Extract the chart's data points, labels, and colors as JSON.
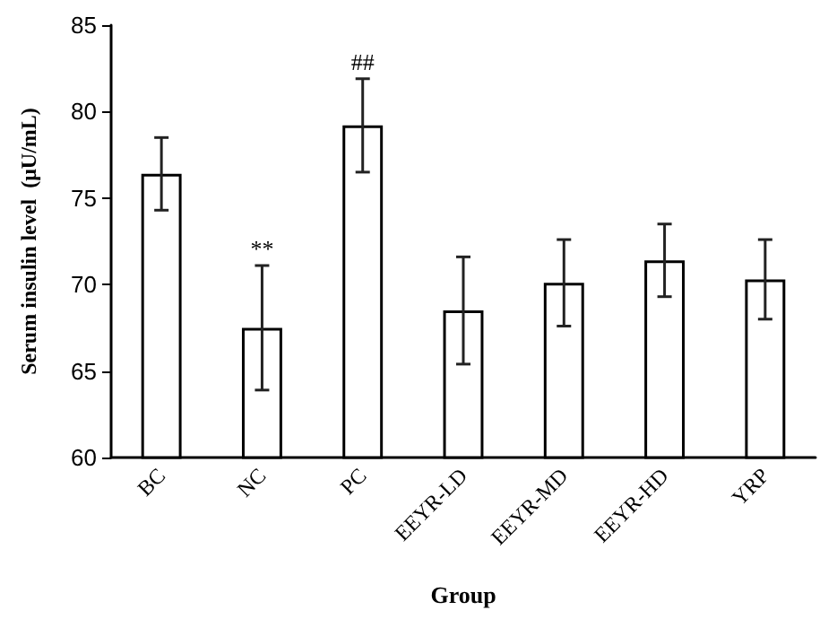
{
  "chart_data": {
    "type": "bar",
    "xlabel": "Group",
    "ylabel": "Serum insulin level  (μU/mL)",
    "categories": [
      "BC",
      "NC",
      "PC",
      "EEYR-LD",
      "EEYR-MD",
      "EEYR-HD",
      "YRP"
    ],
    "values": [
      76.4,
      67.5,
      79.2,
      68.5,
      70.1,
      71.4,
      70.3
    ],
    "errors": [
      2.1,
      3.6,
      2.7,
      3.1,
      2.5,
      2.1,
      2.3
    ],
    "color": "#ffffff",
    "value_labels": [
      null,
      "**",
      "##",
      null,
      null,
      null,
      null
    ],
    "ylim": [
      60,
      85
    ],
    "yticks": [
      60,
      65,
      70,
      75,
      80,
      85
    ],
    "grid": false
  }
}
